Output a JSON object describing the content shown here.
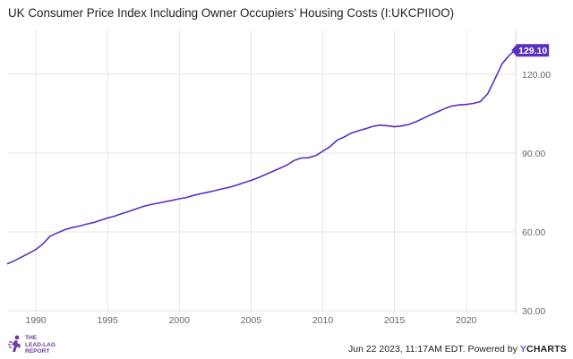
{
  "chart_data": {
    "type": "line",
    "title": "UK Consumer Price Index Including Owner Occupiers’ Housing Costs (I:UKCPIIOO)",
    "xlabel": "",
    "ylabel": "",
    "xlim": [
      1988.0,
      2023.45
    ],
    "ylim": [
      29.0,
      137.0
    ],
    "x_ticks": [
      1990,
      1995,
      2000,
      2005,
      2010,
      2015,
      2020
    ],
    "x_tick_labels": [
      "1990",
      "1995",
      "2000",
      "2005",
      "2010",
      "2015",
      "2020"
    ],
    "y_ticks": [
      30,
      60,
      90,
      120
    ],
    "y_tick_labels": [
      "30.00",
      "60.00",
      "90.00",
      "120.00"
    ],
    "last_value_label": "129.10",
    "grid": true,
    "series": [
      {
        "color": "#5b2fbf",
        "x": [
          1988.0,
          1988.5,
          1989.0,
          1989.5,
          1990.0,
          1990.5,
          1991.0,
          1991.5,
          1992.0,
          1992.5,
          1993.0,
          1993.5,
          1994.0,
          1994.5,
          1995.0,
          1995.5,
          1996.0,
          1996.5,
          1997.0,
          1997.5,
          1998.0,
          1998.5,
          1999.0,
          1999.5,
          2000.0,
          2000.5,
          2001.0,
          2001.5,
          2002.0,
          2002.5,
          2003.0,
          2003.5,
          2004.0,
          2004.5,
          2005.0,
          2005.5,
          2006.0,
          2006.5,
          2007.0,
          2007.5,
          2008.0,
          2008.5,
          2009.0,
          2009.5,
          2010.0,
          2010.5,
          2011.0,
          2011.5,
          2012.0,
          2012.5,
          2013.0,
          2013.5,
          2014.0,
          2014.5,
          2015.0,
          2015.5,
          2016.0,
          2016.5,
          2017.0,
          2017.5,
          2018.0,
          2018.5,
          2019.0,
          2019.5,
          2020.0,
          2020.5,
          2021.0,
          2021.5,
          2022.0,
          2022.5,
          2023.0,
          2023.4
        ],
        "y": [
          47.8,
          49.0,
          50.4,
          51.8,
          53.3,
          55.5,
          58.4,
          59.6,
          60.8,
          61.6,
          62.2,
          62.9,
          63.5,
          64.4,
          65.3,
          66.0,
          67.0,
          67.8,
          68.8,
          69.7,
          70.4,
          70.9,
          71.5,
          72.0,
          72.6,
          73.1,
          73.9,
          74.5,
          75.1,
          75.7,
          76.4,
          77.0,
          77.8,
          78.7,
          79.6,
          80.6,
          81.8,
          83.0,
          84.2,
          85.4,
          87.2,
          88.1,
          88.2,
          89.0,
          90.7,
          92.4,
          94.9,
          96.1,
          97.6,
          98.5,
          99.3,
          100.2,
          100.6,
          100.4,
          100.0,
          100.3,
          100.9,
          101.9,
          103.2,
          104.5,
          105.7,
          106.9,
          107.9,
          108.3,
          108.5,
          108.9,
          109.6,
          112.6,
          118.2,
          124.0,
          127.2,
          129.1
        ]
      }
    ]
  },
  "footer": {
    "logo_lines": [
      "THE",
      "LEAD-LAG",
      "REPORT"
    ],
    "logo_icon": "running-figure-logo-icon",
    "attribution": "Jun 22 2023, 11:17AM EDT.  Powered by ",
    "brand_y": "Y",
    "brand_rest": "CHARTS"
  }
}
